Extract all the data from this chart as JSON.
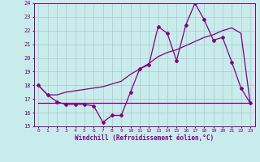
{
  "xlabel": "Windchill (Refroidissement éolien,°C)",
  "background_color": "#c8ecec",
  "line_color": "#800080",
  "grid_color": "#b0c8c8",
  "xlim": [
    -0.5,
    23.5
  ],
  "ylim": [
    15,
    24
  ],
  "xticks": [
    0,
    1,
    2,
    3,
    4,
    5,
    6,
    7,
    8,
    9,
    10,
    11,
    12,
    13,
    14,
    15,
    16,
    17,
    18,
    19,
    20,
    21,
    22,
    23
  ],
  "yticks": [
    15,
    16,
    17,
    18,
    19,
    20,
    21,
    22,
    23,
    24
  ],
  "series1_x": [
    0,
    1,
    2,
    3,
    4,
    5,
    6,
    7,
    8,
    9,
    10,
    11,
    12,
    13,
    14,
    15,
    16,
    17,
    18,
    19,
    20,
    21,
    22,
    23
  ],
  "series1_y": [
    18.0,
    17.3,
    16.8,
    16.6,
    16.6,
    16.6,
    16.5,
    15.3,
    15.8,
    15.8,
    17.5,
    19.2,
    19.5,
    22.3,
    21.8,
    19.8,
    22.4,
    24.0,
    22.8,
    21.3,
    21.5,
    19.7,
    17.8,
    16.7
  ],
  "series2_x": [
    0,
    23
  ],
  "series2_y": [
    16.7,
    16.7
  ],
  "series3_x": [
    0,
    1,
    2,
    3,
    4,
    5,
    6,
    7,
    8,
    9,
    10,
    11,
    12,
    13,
    14,
    15,
    16,
    17,
    18,
    19,
    20,
    21,
    22,
    23
  ],
  "series3_y": [
    18.0,
    17.3,
    17.3,
    17.5,
    17.6,
    17.7,
    17.8,
    17.9,
    18.1,
    18.3,
    18.8,
    19.2,
    19.6,
    20.1,
    20.4,
    20.6,
    20.9,
    21.2,
    21.5,
    21.7,
    22.0,
    22.2,
    21.8,
    16.7
  ]
}
